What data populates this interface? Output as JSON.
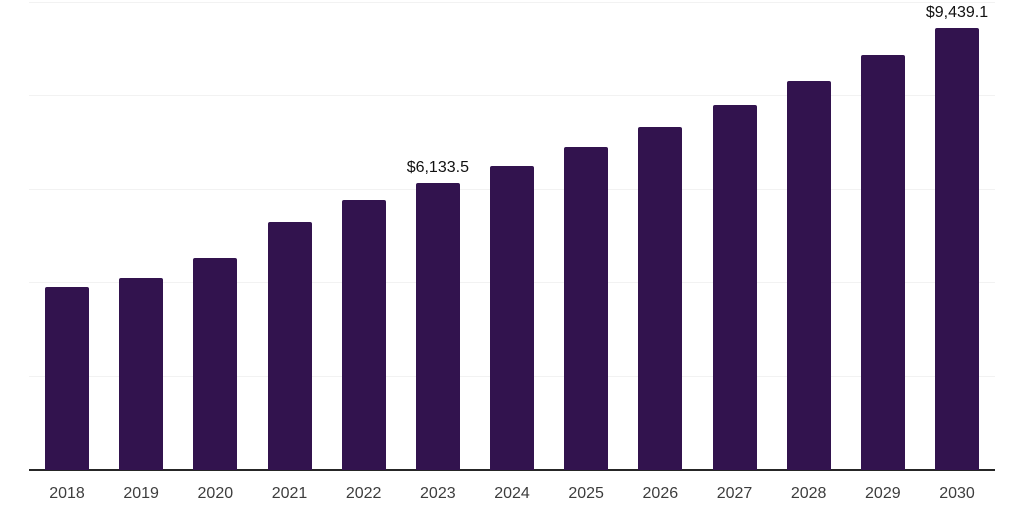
{
  "chart_data": {
    "type": "bar",
    "title": "",
    "xlabel": "",
    "ylabel": "",
    "categories": [
      "2018",
      "2019",
      "2020",
      "2021",
      "2022",
      "2023",
      "2024",
      "2025",
      "2026",
      "2027",
      "2028",
      "2029",
      "2030"
    ],
    "values": [
      3920,
      4110,
      4540,
      5290,
      5770,
      6133.5,
      6500,
      6900,
      7330,
      7800,
      8310,
      8870,
      9439.1
    ],
    "data_labels": [
      "",
      "",
      "",
      "",
      "",
      "$6,133.5",
      "",
      "",
      "",
      "",
      "",
      "",
      "$9,439.1"
    ],
    "ylim": [
      0,
      10000
    ],
    "gridline_values": [
      2000,
      4000,
      6000,
      8000,
      10000
    ],
    "grid": true,
    "y_axis_labels_visible": false,
    "legend_position": "none",
    "colors": {
      "bar": "#32134E",
      "gridline": "#F2F2F2",
      "axis_line": "#262626",
      "tick_label": "#3D3D3D",
      "data_label": "#111111",
      "background": "#FFFFFF"
    }
  }
}
